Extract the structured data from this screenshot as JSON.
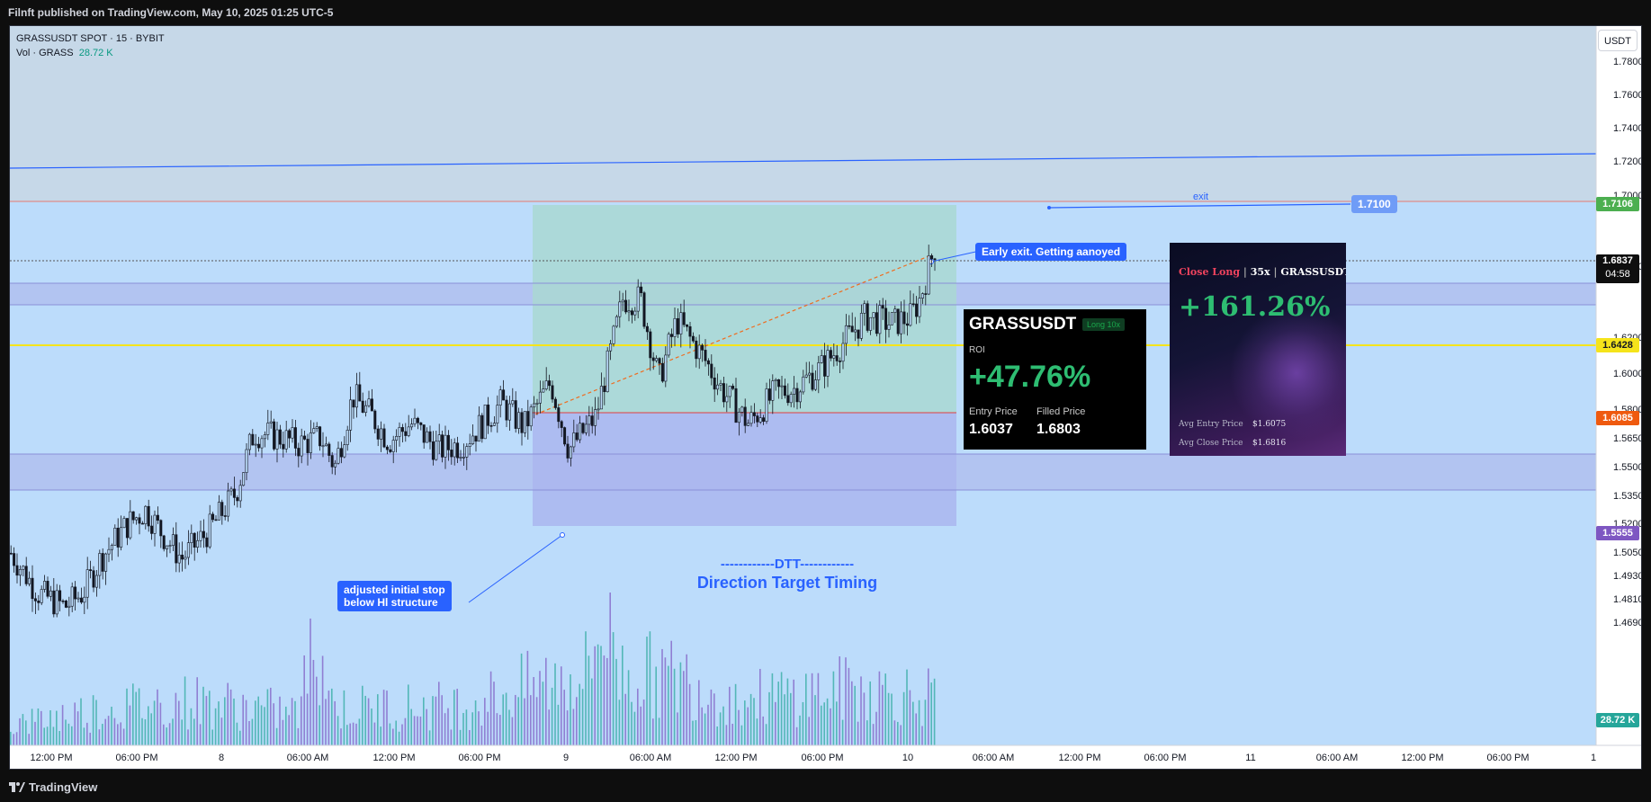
{
  "header": {
    "published": "Filnft published on TradingView.com, May 10, 2025 01:25 UTC-5"
  },
  "legend": {
    "symbol_line": "GRASSUSDT SPOT · 15 · BYBIT",
    "vol_label": "Vol · GRASS",
    "vol_value": "28.72 K"
  },
  "axis": {
    "unit": "USDT",
    "price_ticks": [
      "1.7800",
      "1.7600",
      "1.7400",
      "1.7200",
      "1.7000",
      "1.6600",
      "1.6200",
      "1.6000",
      "1.5800",
      "1.5650",
      "1.5500",
      "1.5350",
      "1.5200",
      "1.5050",
      "1.4930",
      "1.4810",
      "1.4690"
    ],
    "time_ticks": [
      "12:00 PM",
      "06:00 PM",
      "8",
      "06:00 AM",
      "12:00 PM",
      "06:00 PM",
      "9",
      "06:00 AM",
      "12:00 PM",
      "06:00 PM",
      "10",
      "06:00 AM",
      "12:00 PM",
      "06:00 PM",
      "11",
      "06:00 AM",
      "12:00 PM",
      "06:00 PM",
      "1"
    ],
    "badges": {
      "take_profit": "1.7106",
      "last_price": "1.6837",
      "countdown": "04:58",
      "yellow_level": "1.6428",
      "entry_line": "1.6085",
      "stop": "1.5555",
      "volume": "28.72 K"
    }
  },
  "annotations": {
    "exit_label": "exit",
    "exit_price": "1.7100",
    "early_exit": "Early exit. Getting aanoyed",
    "stop_note_line1": "adjusted initial stop",
    "stop_note_line2": "below Hl structure",
    "dtt_line1": "------------DTT------------",
    "dtt_line2": "Direction Target Timing"
  },
  "roi_card": {
    "symbol": "GRASSUSDT",
    "tag": "Long 10x",
    "roi_label": "ROI",
    "roi_value": "+47.76%",
    "entry_label": "Entry Price",
    "entry_value": "1.6037",
    "filled_label": "Filled Price",
    "filled_value": "1.6803"
  },
  "close_card": {
    "side": "Close Long",
    "leverage": "35x",
    "symbol": "GRASSUSDT",
    "pnl": "+161.26%",
    "avg_entry_label": "Avg Entry Price",
    "avg_entry_value": "$1.6075",
    "avg_close_label": "Avg Close Price",
    "avg_close_value": "$1.6816"
  },
  "footer": {
    "brand": "TradingView"
  },
  "colors": {
    "chart_bg": "#bcdcfb",
    "upper_zone": "#c6d8e8",
    "target_zone": "#a9d8d2",
    "stop_zone": "#aab6ef",
    "candle": "#131722",
    "accent": "#2962ff",
    "yellow_level": "#f5e41b",
    "entry_red": "#e03e3e",
    "tp_green": "#4caf50",
    "stop_purple": "#7e57c2",
    "entry_orange": "#ef5a0f",
    "vol_teal": "#26a69a"
  },
  "chart_data": {
    "type": "candlestick",
    "symbol": "GRASSUSDT",
    "interval": "15",
    "exchange": "BYBIT",
    "ylim": [
      1.465,
      1.79
    ],
    "close_path": [
      [
        0,
        1.505
      ],
      [
        30,
        1.482
      ],
      [
        60,
        1.474
      ],
      [
        80,
        1.482
      ],
      [
        100,
        1.502
      ],
      [
        130,
        1.522
      ],
      [
        150,
        1.53
      ],
      [
        170,
        1.515
      ],
      [
        190,
        1.502
      ],
      [
        220,
        1.518
      ],
      [
        250,
        1.54
      ],
      [
        270,
        1.575
      ],
      [
        300,
        1.572
      ],
      [
        320,
        1.568
      ],
      [
        345,
        1.572
      ],
      [
        360,
        1.555
      ],
      [
        380,
        1.596
      ],
      [
        400,
        1.585
      ],
      [
        420,
        1.57
      ],
      [
        445,
        1.58
      ],
      [
        475,
        1.565
      ],
      [
        500,
        1.568
      ],
      [
        520,
        1.578
      ],
      [
        545,
        1.592
      ],
      [
        570,
        1.578
      ],
      [
        600,
        1.604
      ],
      [
        620,
        1.565
      ],
      [
        650,
        1.584
      ],
      [
        680,
        1.652
      ],
      [
        700,
        1.652
      ],
      [
        720,
        1.605
      ],
      [
        740,
        1.64
      ],
      [
        770,
        1.618
      ],
      [
        790,
        1.6
      ],
      [
        820,
        1.58
      ],
      [
        850,
        1.598
      ],
      [
        870,
        1.6
      ],
      [
        900,
        1.612
      ],
      [
        930,
        1.63
      ],
      [
        950,
        1.642
      ],
      [
        980,
        1.638
      ],
      [
        1000,
        1.642
      ],
      [
        1010,
        1.652
      ],
      [
        1030,
        1.688
      ]
    ],
    "volume_path": [
      [
        0,
        5
      ],
      [
        100,
        9
      ],
      [
        200,
        11
      ],
      [
        320,
        8
      ],
      [
        340,
        28
      ],
      [
        360,
        9
      ],
      [
        500,
        10
      ],
      [
        640,
        18
      ],
      [
        660,
        32
      ],
      [
        680,
        18
      ],
      [
        760,
        16
      ],
      [
        800,
        11
      ],
      [
        940,
        14
      ],
      [
        1020,
        12
      ],
      [
        1040,
        9
      ]
    ]
  }
}
